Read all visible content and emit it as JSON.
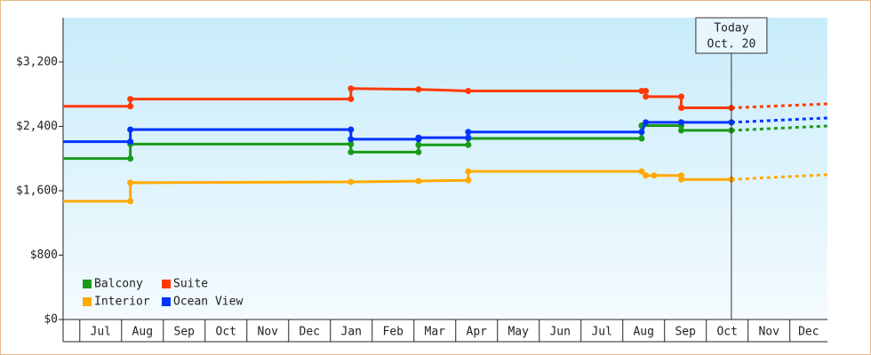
{
  "chart_data": {
    "type": "step-line",
    "xlim": [
      -0.4,
      17.9
    ],
    "xticks": [
      {
        "value": 0,
        "label": "Jul"
      },
      {
        "value": 1,
        "label": "Aug"
      },
      {
        "value": 2,
        "label": "Sep"
      },
      {
        "value": 3,
        "label": "Oct"
      },
      {
        "value": 4,
        "label": "Nov"
      },
      {
        "value": 5,
        "label": "Dec"
      },
      {
        "value": 6,
        "label": "Jan"
      },
      {
        "value": 7,
        "label": "Feb"
      },
      {
        "value": 8,
        "label": "Mar"
      },
      {
        "value": 9,
        "label": "Apr"
      },
      {
        "value": 10,
        "label": "May"
      },
      {
        "value": 11,
        "label": "Jun"
      },
      {
        "value": 12,
        "label": "Jul"
      },
      {
        "value": 13,
        "label": "Aug"
      },
      {
        "value": 14,
        "label": "Sep"
      },
      {
        "value": 15,
        "label": "Oct"
      },
      {
        "value": 16,
        "label": "Nov"
      },
      {
        "value": 17,
        "label": "Dec"
      }
    ],
    "ylim": [
      0,
      3750
    ],
    "yticks": [
      {
        "value": 0,
        "label": "$0"
      },
      {
        "value": 800,
        "label": "$800"
      },
      {
        "value": 1600,
        "label": "$1,600"
      },
      {
        "value": 2400,
        "label": "$2,400"
      },
      {
        "value": 3200,
        "label": "$3,200"
      }
    ],
    "today": {
      "x": 15.6,
      "label": "Today",
      "date": "Oct. 20"
    },
    "projection_x": [
      15.6,
      17.9
    ],
    "series": [
      {
        "name": "Balcony",
        "color": "#1a9a1a",
        "x": [
          -0.4,
          1.21,
          1.21,
          6.49,
          6.49,
          8.11,
          8.11,
          9.3,
          9.3,
          13.45,
          13.45,
          14.4,
          14.4,
          15.6
        ],
        "values": [
          2000,
          2000,
          2180,
          2180,
          2080,
          2080,
          2170,
          2170,
          2250,
          2250,
          2410,
          2410,
          2350,
          2350
        ],
        "projection": [
          2350,
          2405
        ]
      },
      {
        "name": "Suite",
        "color": "#ff3a00",
        "x": [
          -0.4,
          1.21,
          1.21,
          6.49,
          6.49,
          8.11,
          9.3,
          13.45,
          13.55,
          13.55,
          14.4,
          14.4,
          15.6
        ],
        "values": [
          2650,
          2650,
          2740,
          2740,
          2870,
          2860,
          2840,
          2840,
          2840,
          2770,
          2770,
          2630,
          2630
        ],
        "projection": [
          2630,
          2680
        ]
      },
      {
        "name": "Interior",
        "color": "#ffaa00",
        "x": [
          -0.4,
          1.21,
          1.21,
          6.49,
          8.11,
          9.3,
          9.3,
          13.45,
          13.55,
          13.75,
          14.4,
          14.4,
          15.6
        ],
        "values": [
          1470,
          1470,
          1700,
          1710,
          1720,
          1730,
          1840,
          1840,
          1790,
          1790,
          1790,
          1740,
          1740
        ],
        "projection": [
          1740,
          1800
        ]
      },
      {
        "name": "Ocean View",
        "color": "#0033ff",
        "x": [
          -0.4,
          1.21,
          1.21,
          6.49,
          6.49,
          8.11,
          8.11,
          9.3,
          9.3,
          13.45,
          13.55,
          14.4,
          15.6
        ],
        "values": [
          2210,
          2210,
          2360,
          2360,
          2240,
          2240,
          2260,
          2260,
          2330,
          2330,
          2450,
          2450,
          2450
        ],
        "projection": [
          2450,
          2505
        ]
      }
    ]
  }
}
